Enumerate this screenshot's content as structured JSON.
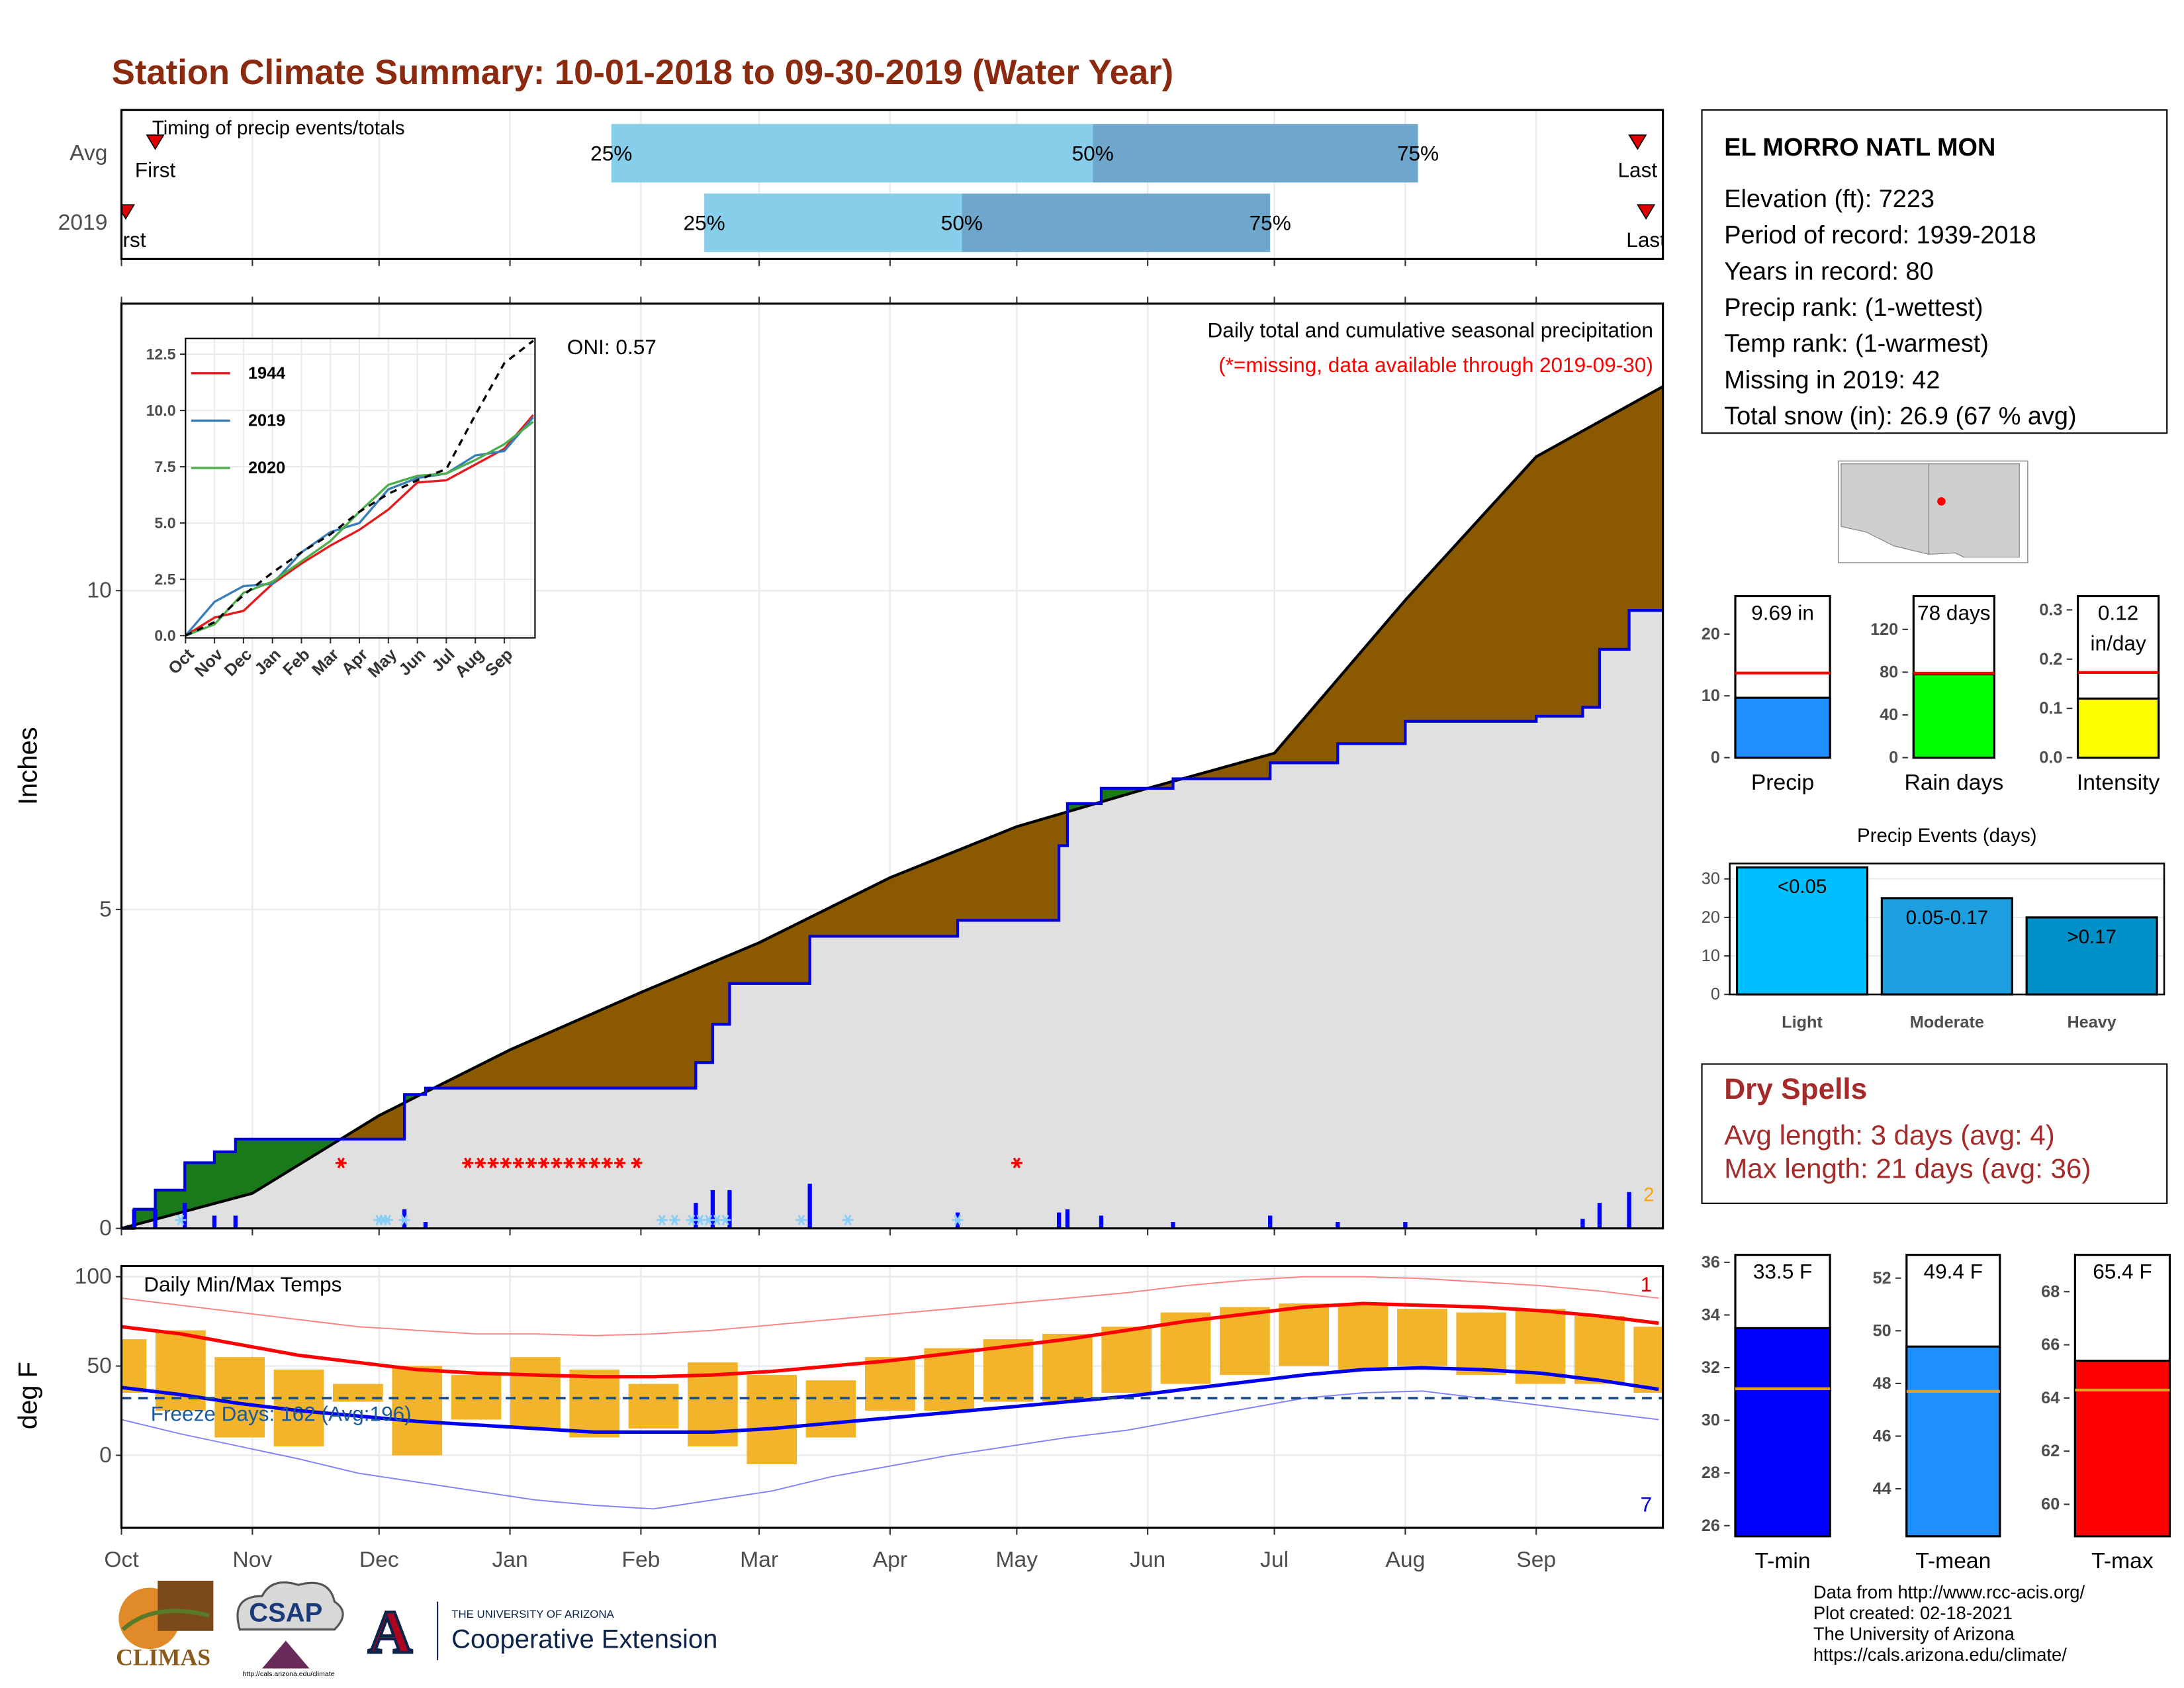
{
  "title": "Station Climate Summary: 10-01-2018 to 09-30-2019 (Water Year)",
  "info": {
    "name": "EL MORRO NATL MON",
    "lines": [
      "Elevation (ft): 7223",
      "Period of record: 1939-2018",
      "Years in record: 80",
      "Precip rank:  (1-wettest)",
      "Temp rank:  (1-warmest)",
      "Missing in 2019: 42",
      "Total snow (in): 26.9 (67 % avg)"
    ]
  },
  "dry_spells": {
    "title": "Dry Spells",
    "lines": [
      "Avg length: 3 days (avg: 4)",
      "Max length: 21 days (avg: 36)"
    ]
  },
  "footer": [
    "Data from http://www.rcc-acis.org/",
    "Plot created: 02-18-2021",
    "The University of Arizona",
    "https://cals.arizona.edu/climate/"
  ],
  "logos": {
    "climas": "CLIMAS",
    "csap": "CSAP",
    "csap_url": "http://cals.arizona.edu/climate",
    "ua_letter": "A",
    "ua_top": "THE UNIVERSITY OF ARIZONA",
    "ua_bottom": "Cooperative Extension"
  },
  "chart_data": [
    {
      "type": "timeline",
      "title": "Timing of precip events/totals",
      "labels": [
        "First",
        "25%",
        "50%",
        "75%",
        "Last"
      ],
      "colors": [
        "#87ceeb",
        "#6ea6cc"
      ],
      "marker_color": "#e00000",
      "xlim": [
        0,
        365
      ],
      "series": [
        {
          "name": "Avg",
          "values": [
            8,
            116,
            230,
            307,
            359
          ]
        },
        {
          "name": "2019",
          "values": [
            1,
            138,
            199,
            272,
            361
          ]
        }
      ]
    },
    {
      "type": "area",
      "title": "Daily total and cumulative seasonal precipitation",
      "subtitle": "(*=missing, data available through 2019-09-30)",
      "subtitle_color": "#ff0000",
      "annotation": "ONI: 0.57",
      "corner_note": "2",
      "corner_note_color": "#ffa500",
      "ylabel": "Inches",
      "xlim": [
        0,
        365
      ],
      "ylim": [
        0,
        14.5
      ],
      "yticks": [
        0,
        5,
        10
      ],
      "grid": true,
      "observed": {
        "color": "#0000dd",
        "x": [
          0,
          3,
          8,
          15,
          22,
          27,
          67,
          72,
          136,
          140,
          144,
          163,
          198,
          222,
          224,
          232,
          249,
          272,
          288,
          304,
          335,
          346,
          350,
          357,
          365
        ],
        "values": [
          0,
          0.3,
          0.6,
          1.03,
          1.2,
          1.4,
          2.1,
          2.2,
          2.6,
          3.2,
          3.84,
          4.58,
          4.83,
          6.0,
          6.66,
          6.9,
          7.05,
          7.3,
          7.6,
          7.95,
          8.03,
          8.17,
          9.08,
          9.69,
          9.69
        ]
      },
      "normal": {
        "color": "#000000",
        "x": [
          0,
          31,
          61,
          92,
          123,
          151,
          182,
          212,
          243,
          273,
          304,
          335,
          365
        ],
        "values": [
          0,
          0.55,
          1.77,
          2.8,
          3.7,
          4.48,
          5.5,
          6.3,
          6.9,
          7.45,
          9.85,
          12.1,
          13.2
        ]
      },
      "fill_colors": {
        "above": "#1a7a1a",
        "below": "#8b5a00",
        "common": "#e0e0e0"
      },
      "daily": {
        "color": "#0000ff",
        "x": [
          3,
          8,
          15,
          22,
          27,
          67,
          72,
          136,
          140,
          144,
          163,
          198,
          222,
          224,
          232,
          249,
          272,
          288,
          304,
          346,
          350,
          357
        ],
        "values": [
          0.3,
          0.3,
          0.4,
          0.2,
          0.2,
          0.3,
          0.1,
          0.4,
          0.6,
          0.6,
          0.7,
          0.25,
          0.25,
          0.3,
          0.2,
          0.1,
          0.2,
          0.1,
          0.1,
          0.15,
          0.4,
          0.57
        ]
      },
      "missing": {
        "color": "#ff0000",
        "x": [
          52,
          82,
          85,
          88,
          91,
          94,
          97,
          100,
          103,
          106,
          109,
          112,
          115,
          118,
          122,
          212
        ]
      },
      "snow": {
        "color": "#87cefa",
        "x": [
          14,
          61,
          62,
          63,
          67,
          128,
          131,
          135,
          137,
          139,
          141,
          143,
          161,
          172,
          198
        ]
      }
    },
    {
      "type": "line",
      "xlim": [
        0,
        12.06
      ],
      "ylim": [
        -0.1,
        13.2
      ],
      "xticks": [
        {
          "value": 0,
          "label": "Oct"
        },
        {
          "value": 1,
          "label": "Nov"
        },
        {
          "value": 2,
          "label": "Dec"
        },
        {
          "value": 3,
          "label": "Jan"
        },
        {
          "value": 4,
          "label": "Feb"
        },
        {
          "value": 5,
          "label": "Mar"
        },
        {
          "value": 6,
          "label": "Apr"
        },
        {
          "value": 7,
          "label": "May"
        },
        {
          "value": 8,
          "label": "Jun"
        },
        {
          "value": 9,
          "label": "Jul"
        },
        {
          "value": 10,
          "label": "Aug"
        },
        {
          "value": 11,
          "label": "Sep"
        }
      ],
      "yticks": [
        {
          "value": 0,
          "label": "0.0"
        },
        2.5,
        {
          "value": 5,
          "label": "5.0"
        },
        7.5,
        {
          "value": 10,
          "label": "10.0"
        },
        12.5
      ],
      "grid": true,
      "legend": "top-left",
      "x": [
        0,
        1,
        2,
        3,
        4,
        5,
        6,
        7,
        8,
        9,
        10,
        11,
        12
      ],
      "series": [
        {
          "name": "1944",
          "color": "#e41a1c",
          "values": [
            0,
            0.8,
            1.1,
            2.3,
            3.2,
            4.0,
            4.7,
            5.6,
            6.8,
            6.9,
            7.6,
            8.3,
            9.8
          ]
        },
        {
          "name": "2019",
          "color": "#377eb8",
          "values": [
            0,
            1.5,
            2.2,
            2.3,
            3.7,
            4.6,
            5.0,
            6.5,
            7.0,
            7.2,
            8.0,
            8.2,
            9.7
          ]
        },
        {
          "name": "2020",
          "color": "#4daf4a",
          "values": [
            0,
            0.5,
            1.9,
            2.4,
            3.3,
            4.2,
            5.5,
            6.7,
            7.1,
            7.2,
            7.8,
            8.5,
            9.5
          ]
        }
      ],
      "normal": {
        "color": "#000000",
        "values": [
          0,
          0.6,
          1.8,
          2.8,
          3.7,
          4.5,
          5.5,
          6.3,
          6.9,
          7.4,
          9.8,
          12.1,
          13.1
        ]
      }
    },
    {
      "type": "bar",
      "categories": [
        "Precip"
      ],
      "values": [
        9.69
      ],
      "value_labels": [
        "9.69 in"
      ],
      "color": "#1e90ff",
      "average": 13.7,
      "average_color": "#ff0000",
      "ylim": [
        0,
        27.5
      ],
      "yticks": [
        0,
        10,
        20
      ]
    },
    {
      "type": "bar",
      "categories": [
        "Rain days"
      ],
      "values": [
        78
      ],
      "value_labels": [
        "78 days"
      ],
      "color": "#00ff00",
      "average": 79,
      "average_color": "#ff0000",
      "ylim": [
        0,
        159
      ],
      "yticks": [
        0,
        40,
        80,
        120
      ]
    },
    {
      "type": "bar",
      "categories": [
        "Intensity"
      ],
      "values": [
        0.12
      ],
      "value_labels": [
        "0.12 in/day"
      ],
      "color": "#ffff00",
      "average": 0.173,
      "average_color": "#ff0000",
      "ylim": [
        0,
        0.345
      ],
      "yticks": [
        {
          "value": 0,
          "label": "0.0"
        },
        0.1,
        0.2,
        0.3
      ]
    },
    {
      "type": "bar",
      "title": "Precip Events (days)",
      "categories": [
        "Light",
        "Moderate",
        "Heavy"
      ],
      "values": [
        33,
        25,
        20
      ],
      "bin_labels": [
        "<0.05",
        "0.05-0.17",
        ">0.17"
      ],
      "colors": [
        "#00bfff",
        "#1e9fdf",
        "#0090c8"
      ],
      "ylim": [
        0,
        34
      ],
      "yticks": [
        0,
        10,
        20,
        30
      ],
      "grid": true
    },
    {
      "type": "range",
      "title": "Daily Min/Max Temps",
      "ylabel": "deg F",
      "annotation": "Freeze Days: 162 (Avg:196)",
      "annotation_color": "#1a5a9a",
      "notes": [
        {
          "text": "1",
          "color": "#e00000"
        },
        {
          "text": "7",
          "color": "#0000cc"
        }
      ],
      "xlim": [
        0,
        365
      ],
      "ylim": [
        -40.6,
        106
      ],
      "yticks": [
        0,
        50,
        100
      ],
      "grid": true,
      "xticks": [
        {
          "value": 0,
          "label": "Oct"
        },
        {
          "value": 31,
          "label": "Nov"
        },
        {
          "value": 61,
          "label": "Dec"
        },
        {
          "value": 92,
          "label": "Jan"
        },
        {
          "value": 123,
          "label": "Feb"
        },
        {
          "value": 151,
          "label": "Mar"
        },
        {
          "value": 182,
          "label": "Apr"
        },
        {
          "value": 212,
          "label": "May"
        },
        {
          "value": 243,
          "label": "Jun"
        },
        {
          "value": 273,
          "label": "Jul"
        },
        {
          "value": 304,
          "label": "Aug"
        },
        {
          "value": 335,
          "label": "Sep"
        }
      ],
      "freeze_line": 32,
      "freeze_color": "#1a4a8a",
      "x": [
        0,
        14,
        28,
        42,
        56,
        70,
        84,
        98,
        112,
        126,
        140,
        154,
        168,
        182,
        196,
        210,
        224,
        238,
        252,
        266,
        280,
        294,
        308,
        322,
        336,
        350,
        364
      ],
      "obs_color": "#f0b020",
      "obs_max": [
        65,
        70,
        55,
        48,
        40,
        50,
        45,
        55,
        48,
        40,
        52,
        45,
        42,
        55,
        60,
        65,
        68,
        72,
        80,
        83,
        85,
        84,
        82,
        80,
        82,
        78,
        72
      ],
      "obs_min": [
        35,
        25,
        10,
        5,
        30,
        0,
        20,
        15,
        10,
        15,
        5,
        -5,
        10,
        25,
        25,
        30,
        30,
        35,
        40,
        45,
        50,
        48,
        50,
        45,
        40,
        40,
        35
      ],
      "record_max": {
        "color": "#ff8080",
        "values": [
          88,
          84,
          80,
          76,
          72,
          70,
          68,
          68,
          67,
          68,
          70,
          73,
          76,
          79,
          82,
          85,
          88,
          91,
          95,
          98,
          100,
          100,
          99,
          97,
          95,
          92,
          88
        ]
      },
      "normal_max": {
        "color": "#ff0000",
        "values": [
          72,
          68,
          62,
          56,
          52,
          48,
          46,
          45,
          44,
          44,
          45,
          47,
          50,
          53,
          57,
          61,
          65,
          70,
          75,
          79,
          83,
          85,
          84,
          83,
          81,
          78,
          74
        ]
      },
      "normal_min": {
        "color": "#0000ee",
        "values": [
          38,
          34,
          29,
          25,
          22,
          19,
          17,
          15,
          13,
          13,
          13,
          15,
          18,
          21,
          24,
          27,
          30,
          33,
          37,
          41,
          45,
          48,
          49,
          48,
          46,
          42,
          37
        ]
      },
      "record_min": {
        "color": "#8080ff",
        "values": [
          20,
          12,
          5,
          -2,
          -10,
          -15,
          -20,
          -25,
          -28,
          -30,
          -25,
          -20,
          -12,
          -6,
          0,
          5,
          10,
          14,
          20,
          26,
          32,
          35,
          36,
          32,
          28,
          24,
          20
        ]
      }
    },
    {
      "type": "bar",
      "categories": [
        "T-min"
      ],
      "values": [
        33.5
      ],
      "value_labels": [
        "33.5 F"
      ],
      "color": "#0000ff",
      "average": 31.2,
      "average_color": "#e0a020",
      "ylim": [
        25.6,
        36.6
      ],
      "yticks": [
        26,
        28,
        30,
        32,
        34,
        36
      ]
    },
    {
      "type": "bar",
      "categories": [
        "T-mean"
      ],
      "values": [
        49.4
      ],
      "value_labels": [
        "49.4 F"
      ],
      "color": "#1e90ff",
      "average": 47.7,
      "average_color": "#e0a020",
      "ylim": [
        42.2,
        53.2
      ],
      "yticks": [
        44,
        46,
        48,
        50,
        52
      ]
    },
    {
      "type": "bar",
      "categories": [
        "T-max"
      ],
      "values": [
        65.4
      ],
      "value_labels": [
        "65.4 F"
      ],
      "color": "#ff0000",
      "average": 64.3,
      "average_color": "#e0a020",
      "ylim": [
        58.8,
        69.7
      ],
      "yticks": [
        60,
        62,
        64,
        66,
        68
      ]
    }
  ]
}
